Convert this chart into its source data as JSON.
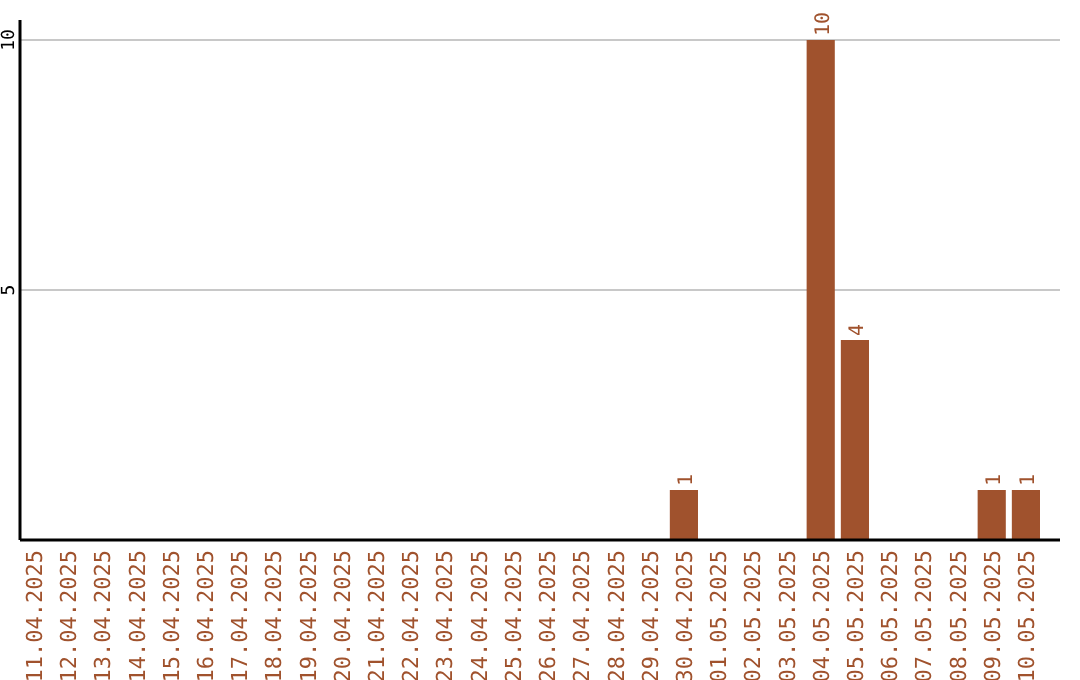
{
  "chart_data": {
    "type": "bar",
    "categories": [
      "11.04.2025",
      "12.04.2025",
      "13.04.2025",
      "14.04.2025",
      "15.04.2025",
      "16.04.2025",
      "17.04.2025",
      "18.04.2025",
      "19.04.2025",
      "20.04.2025",
      "21.04.2025",
      "22.04.2025",
      "23.04.2025",
      "24.04.2025",
      "25.04.2025",
      "26.04.2025",
      "27.04.2025",
      "28.04.2025",
      "29.04.2025",
      "30.04.2025",
      "01.05.2025",
      "02.05.2025",
      "03.05.2025",
      "04.05.2025",
      "05.05.2025",
      "06.05.2025",
      "07.05.2025",
      "08.05.2025",
      "09.05.2025",
      "10.05.2025"
    ],
    "values": [
      0,
      0,
      0,
      0,
      0,
      0,
      0,
      0,
      0,
      0,
      0,
      0,
      0,
      0,
      0,
      0,
      0,
      0,
      0,
      1,
      0,
      0,
      0,
      10,
      4,
      0,
      0,
      0,
      1,
      1
    ],
    "value_labels": [
      null,
      null,
      null,
      null,
      null,
      null,
      null,
      null,
      null,
      null,
      null,
      null,
      null,
      null,
      null,
      null,
      null,
      null,
      null,
      "1",
      null,
      null,
      null,
      "10",
      "4",
      null,
      null,
      null,
      "1",
      "1"
    ],
    "color": "#a0522d",
    "ylim": [
      0,
      10.4
    ],
    "yticks": [
      5,
      10
    ],
    "grid": "y"
  }
}
